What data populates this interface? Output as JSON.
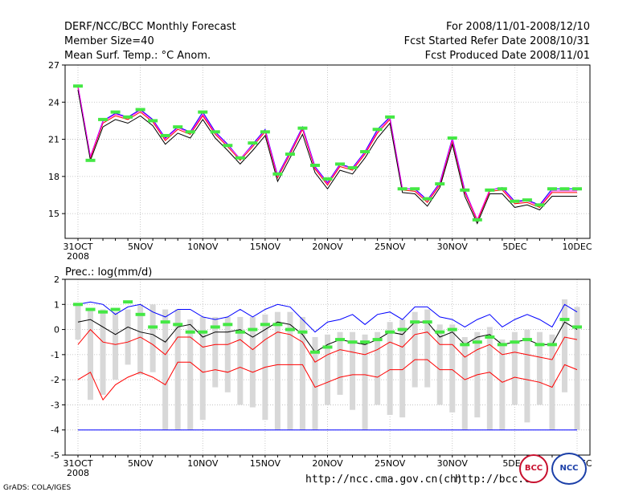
{
  "header": {
    "title": "DERF/NCC/BCC Monthly Forecast",
    "member_size": "Member Size=40",
    "variable": "Mean Surf. Temp.: °C Anom.",
    "period": "For 2008/11/01-2008/12/10",
    "start_date": "Fcst Started Refer Date 2008/10/31",
    "produced_date": "Fcst Produced Date 2008/11/01"
  },
  "footer": {
    "url1": "http://ncc.cma.gov.cn(ch)",
    "url2": "http://bcc.c",
    "grads": "GrADS: COLA/IGES",
    "logo_bcc": "BCC",
    "logo_ncc": "NCC"
  },
  "colors": {
    "member_max": "#0000ff",
    "member_mid": "#ff0000",
    "member_min": "#000000",
    "mean": "#ff00ff",
    "marker": "#44e844",
    "box": "#d8d8d8"
  },
  "chart_data": [
    {
      "type": "line",
      "title": "Mean Surf. Temp.: °C Anom.",
      "x": [
        0,
        1,
        2,
        3,
        4,
        5,
        6,
        7,
        8,
        9,
        10,
        11,
        12,
        13,
        14,
        15,
        16,
        17,
        18,
        19,
        20,
        21,
        22,
        23,
        24,
        25,
        26,
        27,
        28,
        29,
        30,
        31,
        32,
        33,
        34,
        35,
        36,
        37,
        38,
        39,
        40
      ],
      "tick_labels": [
        "31OCT",
        "5NOV",
        "10NOV",
        "15NOV",
        "20NOV",
        "25NOV",
        "30NOV",
        "5DEC",
        "10DEC"
      ],
      "tick_positions": [
        0,
        5,
        10,
        15,
        20,
        25,
        30,
        35,
        40
      ],
      "year_label": "2008",
      "ylim": [
        13,
        27
      ],
      "yticks": [
        15,
        18,
        21,
        24,
        27
      ],
      "series": [
        {
          "name": "upper",
          "values": [
            25.3,
            19.6,
            22.5,
            23.1,
            22.8,
            23.4,
            22.6,
            21.1,
            22.0,
            21.6,
            23.2,
            21.6,
            20.6,
            19.4,
            20.6,
            21.8,
            18.1,
            20.0,
            22.0,
            18.8,
            17.5,
            19.0,
            18.7,
            20.0,
            21.8,
            22.8,
            17.0,
            17.0,
            16.1,
            17.5,
            21.1,
            16.9,
            14.5,
            16.9,
            17.1,
            16.0,
            16.1,
            15.7,
            17.0,
            17.0,
            17.0
          ]
        },
        {
          "name": "mid",
          "values": [
            25.2,
            19.5,
            22.3,
            22.9,
            22.6,
            23.2,
            22.4,
            20.9,
            21.8,
            21.4,
            22.9,
            21.4,
            20.4,
            19.3,
            20.4,
            21.6,
            17.9,
            19.8,
            21.8,
            18.6,
            17.3,
            18.8,
            18.5,
            19.8,
            21.5,
            22.6,
            16.9,
            16.8,
            15.9,
            17.3,
            20.9,
            16.7,
            14.4,
            16.8,
            16.9,
            15.8,
            15.9,
            15.5,
            16.7,
            16.7,
            16.7
          ]
        },
        {
          "name": "lower",
          "values": [
            25.0,
            19.3,
            22.0,
            22.6,
            22.3,
            22.9,
            22.1,
            20.6,
            21.5,
            21.1,
            22.6,
            21.1,
            20.1,
            19.0,
            20.1,
            21.3,
            17.6,
            19.5,
            21.4,
            18.3,
            17.0,
            18.5,
            18.2,
            19.5,
            21.1,
            22.3,
            16.7,
            16.6,
            15.6,
            17.1,
            20.6,
            16.4,
            14.2,
            16.6,
            16.6,
            15.5,
            15.7,
            15.3,
            16.4,
            16.4,
            16.4
          ]
        }
      ],
      "markers": [
        25.3,
        19.3,
        22.6,
        23.2,
        22.8,
        23.4,
        22.5,
        21.3,
        22.0,
        21.6,
        23.2,
        21.6,
        20.5,
        19.5,
        20.7,
        21.6,
        18.2,
        19.8,
        21.9,
        18.9,
        17.8,
        19.0,
        18.7,
        20.0,
        21.8,
        22.8,
        17.0,
        17.0,
        16.2,
        17.4,
        21.1,
        16.9,
        14.5,
        16.9,
        17.0,
        16.0,
        16.1,
        15.7,
        17.0,
        17.0,
        17.0
      ]
    },
    {
      "type": "line",
      "title": "Prec.: log(mm/d)",
      "x": [
        0,
        1,
        2,
        3,
        4,
        5,
        6,
        7,
        8,
        9,
        10,
        11,
        12,
        13,
        14,
        15,
        16,
        17,
        18,
        19,
        20,
        21,
        22,
        23,
        24,
        25,
        26,
        27,
        28,
        29,
        30,
        31,
        32,
        33,
        34,
        35,
        36,
        37,
        38,
        39,
        40
      ],
      "tick_labels": [
        "31OCT",
        "5NOV",
        "10NOV",
        "15NOV",
        "20NOV",
        "25NOV",
        "30NOV",
        "5DEC",
        "10DEC"
      ],
      "tick_positions": [
        0,
        5,
        10,
        15,
        20,
        25,
        30,
        35,
        40
      ],
      "year_label": "2008",
      "ylim": [
        -5,
        2
      ],
      "yticks": [
        -5,
        -4,
        -3,
        -2,
        -1,
        0,
        1,
        2
      ],
      "series": [
        {
          "name": "max",
          "values": [
            1.0,
            1.1,
            1.0,
            0.6,
            0.9,
            1.0,
            0.7,
            0.5,
            0.8,
            0.8,
            0.5,
            0.4,
            0.5,
            0.8,
            0.5,
            0.8,
            1.0,
            0.9,
            0.4,
            -0.1,
            0.3,
            0.4,
            0.6,
            0.2,
            0.6,
            0.7,
            0.4,
            0.9,
            0.9,
            0.5,
            0.4,
            0.1,
            0.4,
            0.6,
            0.1,
            0.4,
            0.6,
            0.4,
            0.1,
            1.0,
            0.7
          ]
        },
        {
          "name": "median",
          "values": [
            0.3,
            0.4,
            0.1,
            -0.2,
            0.1,
            -0.1,
            -0.2,
            -0.5,
            0.1,
            0.2,
            -0.3,
            -0.1,
            -0.1,
            0.0,
            -0.3,
            0.0,
            0.3,
            0.2,
            -0.2,
            -0.9,
            -0.6,
            -0.4,
            -0.5,
            -0.6,
            -0.4,
            -0.1,
            -0.2,
            0.3,
            0.3,
            -0.3,
            -0.1,
            -0.6,
            -0.3,
            -0.2,
            -0.6,
            -0.5,
            -0.4,
            -0.6,
            -0.6,
            0.3,
            0.0
          ]
        },
        {
          "name": "q25",
          "values": [
            -0.6,
            0.0,
            -0.5,
            -0.6,
            -0.5,
            -0.3,
            -0.6,
            -1.0,
            -0.3,
            -0.3,
            -0.7,
            -0.6,
            -0.6,
            -0.4,
            -0.8,
            -0.4,
            -0.1,
            -0.2,
            -0.5,
            -1.3,
            -1.0,
            -0.8,
            -0.9,
            -1.0,
            -0.8,
            -0.5,
            -0.7,
            -0.2,
            -0.1,
            -0.6,
            -0.6,
            -1.1,
            -0.8,
            -0.6,
            -1.0,
            -0.9,
            -1.0,
            -1.1,
            -1.2,
            -0.3,
            -0.4
          ]
        },
        {
          "name": "q10",
          "values": [
            -2.0,
            -1.7,
            -2.8,
            -2.2,
            -1.9,
            -1.7,
            -1.9,
            -2.2,
            -1.3,
            -1.3,
            -1.7,
            -1.6,
            -1.7,
            -1.5,
            -1.7,
            -1.5,
            -1.4,
            -1.4,
            -1.4,
            -2.3,
            -2.1,
            -1.9,
            -1.8,
            -1.8,
            -1.9,
            -1.6,
            -1.6,
            -1.2,
            -1.2,
            -1.6,
            -1.6,
            -2.0,
            -1.8,
            -1.7,
            -2.1,
            -1.9,
            -2.0,
            -2.1,
            -2.3,
            -1.4,
            -1.6
          ]
        },
        {
          "name": "min",
          "values": [
            -4.0,
            -4.0,
            -4.0,
            -4.0,
            -4.0,
            -4.0,
            -4.0,
            -4.0,
            -4.0,
            -4.0,
            -4.0,
            -4.0,
            -4.0,
            -4.0,
            -4.0,
            -4.0,
            -4.0,
            -4.0,
            -4.0,
            -4.0,
            -4.0,
            -4.0,
            -4.0,
            -4.0,
            -4.0,
            -4.0,
            -4.0,
            -4.0,
            -4.0,
            -4.0,
            -4.0,
            -4.0,
            -4.0,
            -4.0,
            -4.0,
            -4.0,
            -4.0,
            -4.0,
            -4.0,
            -4.0,
            -4.0
          ]
        }
      ],
      "boxes": [
        [
          1.0,
          -0.4
        ],
        [
          0.8,
          -2.8
        ],
        [
          0.8,
          -2.6
        ],
        [
          0.7,
          -2.0
        ],
        [
          0.8,
          -1.4
        ],
        [
          1.0,
          -1.8
        ],
        [
          1.0,
          -1.7
        ],
        [
          0.8,
          -4.0
        ],
        [
          0.8,
          -4.0
        ],
        [
          0.4,
          -4.0
        ],
        [
          0.5,
          -3.6
        ],
        [
          0.5,
          -2.3
        ],
        [
          0.5,
          -2.5
        ],
        [
          0.5,
          -3.0
        ],
        [
          0.5,
          -3.1
        ],
        [
          0.6,
          -3.6
        ],
        [
          0.7,
          -4.0
        ],
        [
          0.7,
          -4.0
        ],
        [
          0.5,
          -4.0
        ],
        [
          -0.3,
          -4.0
        ],
        [
          -0.2,
          -3.0
        ],
        [
          -0.1,
          -2.6
        ],
        [
          -0.1,
          -3.2
        ],
        [
          -0.2,
          -4.0
        ],
        [
          -0.1,
          -3.0
        ],
        [
          0.3,
          -3.4
        ],
        [
          0.4,
          -3.5
        ],
        [
          0.7,
          -2.3
        ],
        [
          0.8,
          -2.3
        ],
        [
          0.2,
          -3.0
        ],
        [
          0.2,
          -3.3
        ],
        [
          -0.3,
          -4.0
        ],
        [
          -0.1,
          -3.5
        ],
        [
          0.1,
          -4.0
        ],
        [
          -0.4,
          -4.0
        ],
        [
          -0.1,
          -3.0
        ],
        [
          0.0,
          -3.7
        ],
        [
          -0.1,
          -3.0
        ],
        [
          -0.2,
          -4.0
        ],
        [
          1.2,
          -2.5
        ],
        [
          0.9,
          -4.0
        ]
      ],
      "markers": [
        1.0,
        0.8,
        0.7,
        0.8,
        1.1,
        0.6,
        0.1,
        0.3,
        0.2,
        -0.1,
        -0.1,
        0.1,
        0.2,
        -0.1,
        0.0,
        0.2,
        0.2,
        0.0,
        -0.1,
        -0.9,
        -0.7,
        -0.4,
        -0.5,
        -0.5,
        -0.4,
        -0.1,
        0.0,
        0.3,
        0.3,
        -0.1,
        0.0,
        -0.6,
        -0.5,
        -0.3,
        -0.6,
        -0.5,
        -0.4,
        -0.6,
        -0.6,
        0.4,
        0.1
      ]
    }
  ]
}
